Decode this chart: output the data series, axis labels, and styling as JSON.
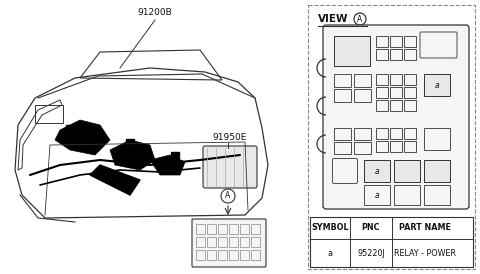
{
  "bg_color": "#ffffff",
  "label_91200B": "91200B",
  "label_91950E": "91950E",
  "table_headers": [
    "SYMBOL",
    "PNC",
    "PART NAME"
  ],
  "table_row": [
    "a",
    "95220J",
    "RELAY - POWER"
  ],
  "dashed_border_color": "#888888",
  "line_color": "#333333",
  "text_color": "#111111",
  "gray_fill": "#e8e8e8",
  "light_fill": "#f5f5f5"
}
